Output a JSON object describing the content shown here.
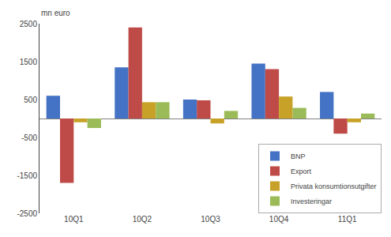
{
  "chart_data": {
    "type": "bar",
    "ylabel": "mn euro",
    "categories": [
      "10Q1",
      "10Q2",
      "10Q3",
      "10Q4",
      "11Q1"
    ],
    "series": [
      {
        "name": "BNP",
        "color": "#4472C4",
        "values": [
          600,
          1350,
          500,
          1450,
          700
        ]
      },
      {
        "name": "Export",
        "color": "#BE4B48",
        "values": [
          -1700,
          2400,
          480,
          1300,
          -400
        ]
      },
      {
        "name": "Privata konsumtionsutgifter",
        "color": "#C8A228",
        "values": [
          -100,
          430,
          -130,
          580,
          -100
        ]
      },
      {
        "name": "Investeringar",
        "color": "#9BBB59",
        "values": [
          -250,
          430,
          200,
          280,
          130
        ]
      }
    ],
    "ylim": [
      -2500,
      2500
    ],
    "yticks": [
      -2500,
      -1500,
      -500,
      500,
      1500,
      2500
    ],
    "grid": false,
    "legend": "lower right"
  }
}
